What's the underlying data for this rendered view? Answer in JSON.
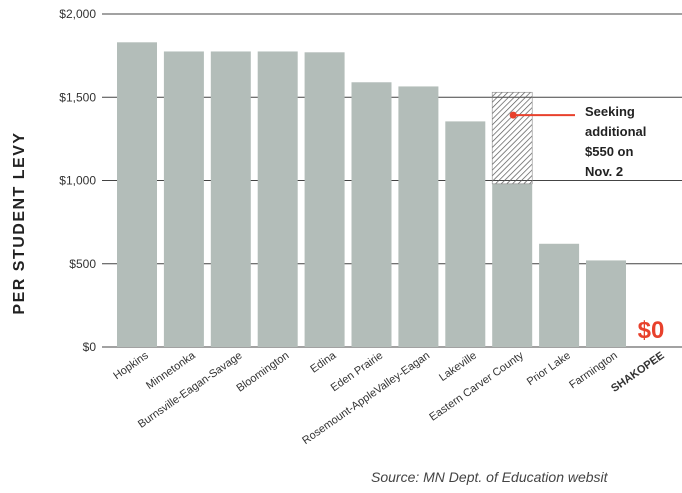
{
  "chart_data": {
    "type": "bar",
    "ylabel": "PER STUDENT LEVY",
    "ylim": [
      0,
      2000
    ],
    "yticks": [
      {
        "value": 0,
        "label": "$0"
      },
      {
        "value": 500,
        "label": "$500"
      },
      {
        "value": 1000,
        "label": "$1,000"
      },
      {
        "value": 1500,
        "label": "$1,500"
      },
      {
        "value": 2000,
        "label": "$2,000"
      }
    ],
    "grid": "horizontal",
    "categories": [
      "Hopkins",
      "Minnetonka",
      "Burnsville-Eagan-Savage",
      "Bloomington",
      "Edina",
      "Eden Prairie",
      "Rosemount-AppleValley-Eagan",
      "Lakeville",
      "Eastern Carver County",
      "Prior Lake",
      "Farmington",
      "SHAKOPEE"
    ],
    "values": [
      1830,
      1775,
      1775,
      1775,
      1770,
      1590,
      1565,
      1355,
      980,
      620,
      520,
      0
    ],
    "proposed_additional": {
      "category": "Eastern Carver County",
      "value": 550
    },
    "annotation": [
      "Seeking",
      "additional",
      "$550 on",
      "Nov. 2"
    ],
    "highlight": {
      "category": "SHAKOPEE",
      "value_label": "$0"
    },
    "source": "Source: MN Dept. of Education websit",
    "colors": {
      "bar": "#b3bdb9",
      "highlight": "#e8412c",
      "grid": "#444444",
      "hatch": "#555555"
    }
  }
}
